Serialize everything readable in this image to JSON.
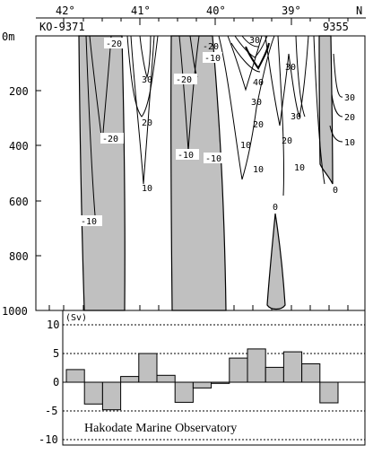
{
  "chart_data": [
    {
      "type": "contour",
      "top_axis": {
        "lat_labels": [
          "42°",
          "41°",
          "40°",
          "39°"
        ],
        "direction_label": "N"
      },
      "stations": {
        "left": "KO-9371",
        "right": "9355"
      },
      "depth_axis": {
        "ticks": [
          "0m",
          "200",
          "400",
          "600",
          "800",
          "1000"
        ],
        "range": [
          0,
          1000
        ]
      },
      "contour_labels": {
        "negative": [
          "-20",
          "-20",
          "-20",
          "-10",
          "-20",
          "-10",
          "-10",
          "-10"
        ],
        "positive": [
          "30",
          "30",
          "20",
          "10",
          "10",
          "30",
          "40",
          "30",
          "20",
          "10",
          "30",
          "20",
          "10",
          "0"
        ],
        "right_edge": [
          "30",
          "20",
          "10"
        ],
        "zero": "0"
      },
      "colors": {
        "negative_fill": "#c0c0c0",
        "line": "#000000"
      }
    },
    {
      "type": "bar",
      "unit_label": "(Sv)",
      "ylim": [
        -10,
        10
      ],
      "y_ticks": [
        "10",
        "5",
        "0",
        "-5",
        "-10"
      ],
      "values": [
        2.2,
        -3.8,
        -4.8,
        1.0,
        5.0,
        1.2,
        -3.5,
        -1.0,
        -0.2,
        4.2,
        5.8,
        2.6,
        5.3,
        3.2,
        -3.6
      ],
      "bar_color": "#c0c0c0"
    }
  ],
  "credit": "Hakodate Marine Observatory"
}
